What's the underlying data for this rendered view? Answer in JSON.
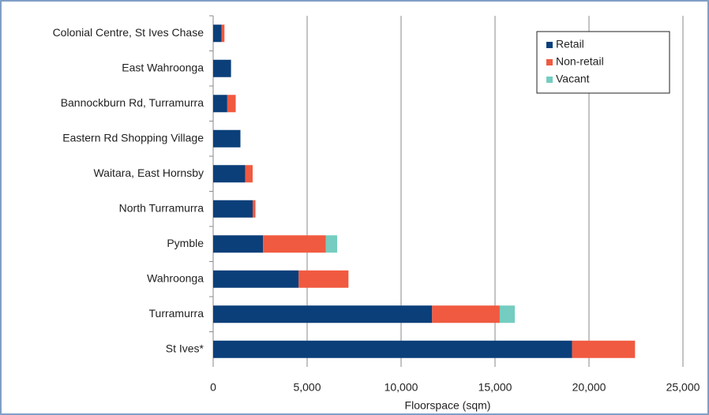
{
  "chart_data": {
    "type": "bar",
    "orientation": "horizontal",
    "stacked": true,
    "x_label": "Floorspace (sqm)",
    "categories": [
      "Colonial Centre, St Ives Chase",
      "East Wahroonga",
      "Bannockburn Rd, Turramurra",
      "Eastern Rd Shopping Village",
      "Waitara, East Hornsby",
      "North Turramurra",
      "Pymble",
      "Wahroonga",
      "Turramurra",
      "St Ives*"
    ],
    "series": [
      {
        "name": "Retail",
        "color": "#0b3f7a",
        "values": [
          450,
          950,
          750,
          1450,
          1700,
          2100,
          2650,
          4550,
          11650,
          19100
        ]
      },
      {
        "name": "Non-retail",
        "color": "#f05a40",
        "values": [
          150,
          0,
          450,
          0,
          400,
          150,
          3350,
          2650,
          3600,
          3350
        ]
      },
      {
        "name": "Vacant",
        "color": "#74cdc0",
        "values": [
          0,
          0,
          0,
          0,
          0,
          0,
          600,
          0,
          800,
          0
        ]
      }
    ],
    "xlim": [
      0,
      25000
    ],
    "xticks": [
      {
        "value": 0,
        "label": "0"
      },
      {
        "value": 5000,
        "label": "5,000"
      },
      {
        "value": 10000,
        "label": "10,000"
      },
      {
        "value": 15000,
        "label": "15,000"
      },
      {
        "value": 20000,
        "label": "20,000"
      },
      {
        "value": 25000,
        "label": "25,000"
      }
    ],
    "grid": true,
    "legend": "upper right"
  }
}
